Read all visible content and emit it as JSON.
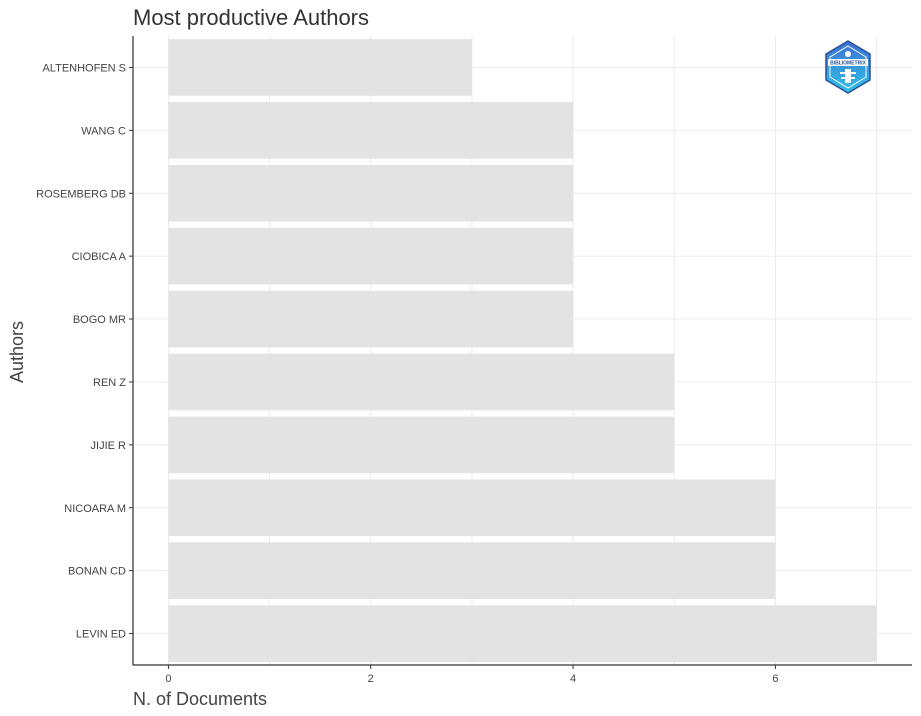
{
  "chart_data": {
    "type": "bar",
    "orientation": "horizontal",
    "title": "Most productive Authors",
    "xlabel": "N. of Documents",
    "ylabel": "Authors",
    "categories": [
      "ALTENHOFEN S",
      "WANG C",
      "ROSEMBERG DB",
      "CIOBICA A",
      "BOGO MR",
      "REN Z",
      "JIJIE R",
      "NICOARA M",
      "BONAN CD",
      "LEVIN ED"
    ],
    "values": [
      3,
      4,
      4,
      4,
      4,
      5,
      5,
      6,
      6,
      7
    ],
    "xlim": [
      -0.35,
      7.35
    ],
    "xticks": [
      0,
      2,
      4,
      6
    ],
    "xtick_labels": [
      "0",
      "2",
      "4",
      "6"
    ],
    "grid": true,
    "legend": "none",
    "bar_color": "#e3e3e3",
    "logo_text": "BIBLIOMETRIX"
  }
}
